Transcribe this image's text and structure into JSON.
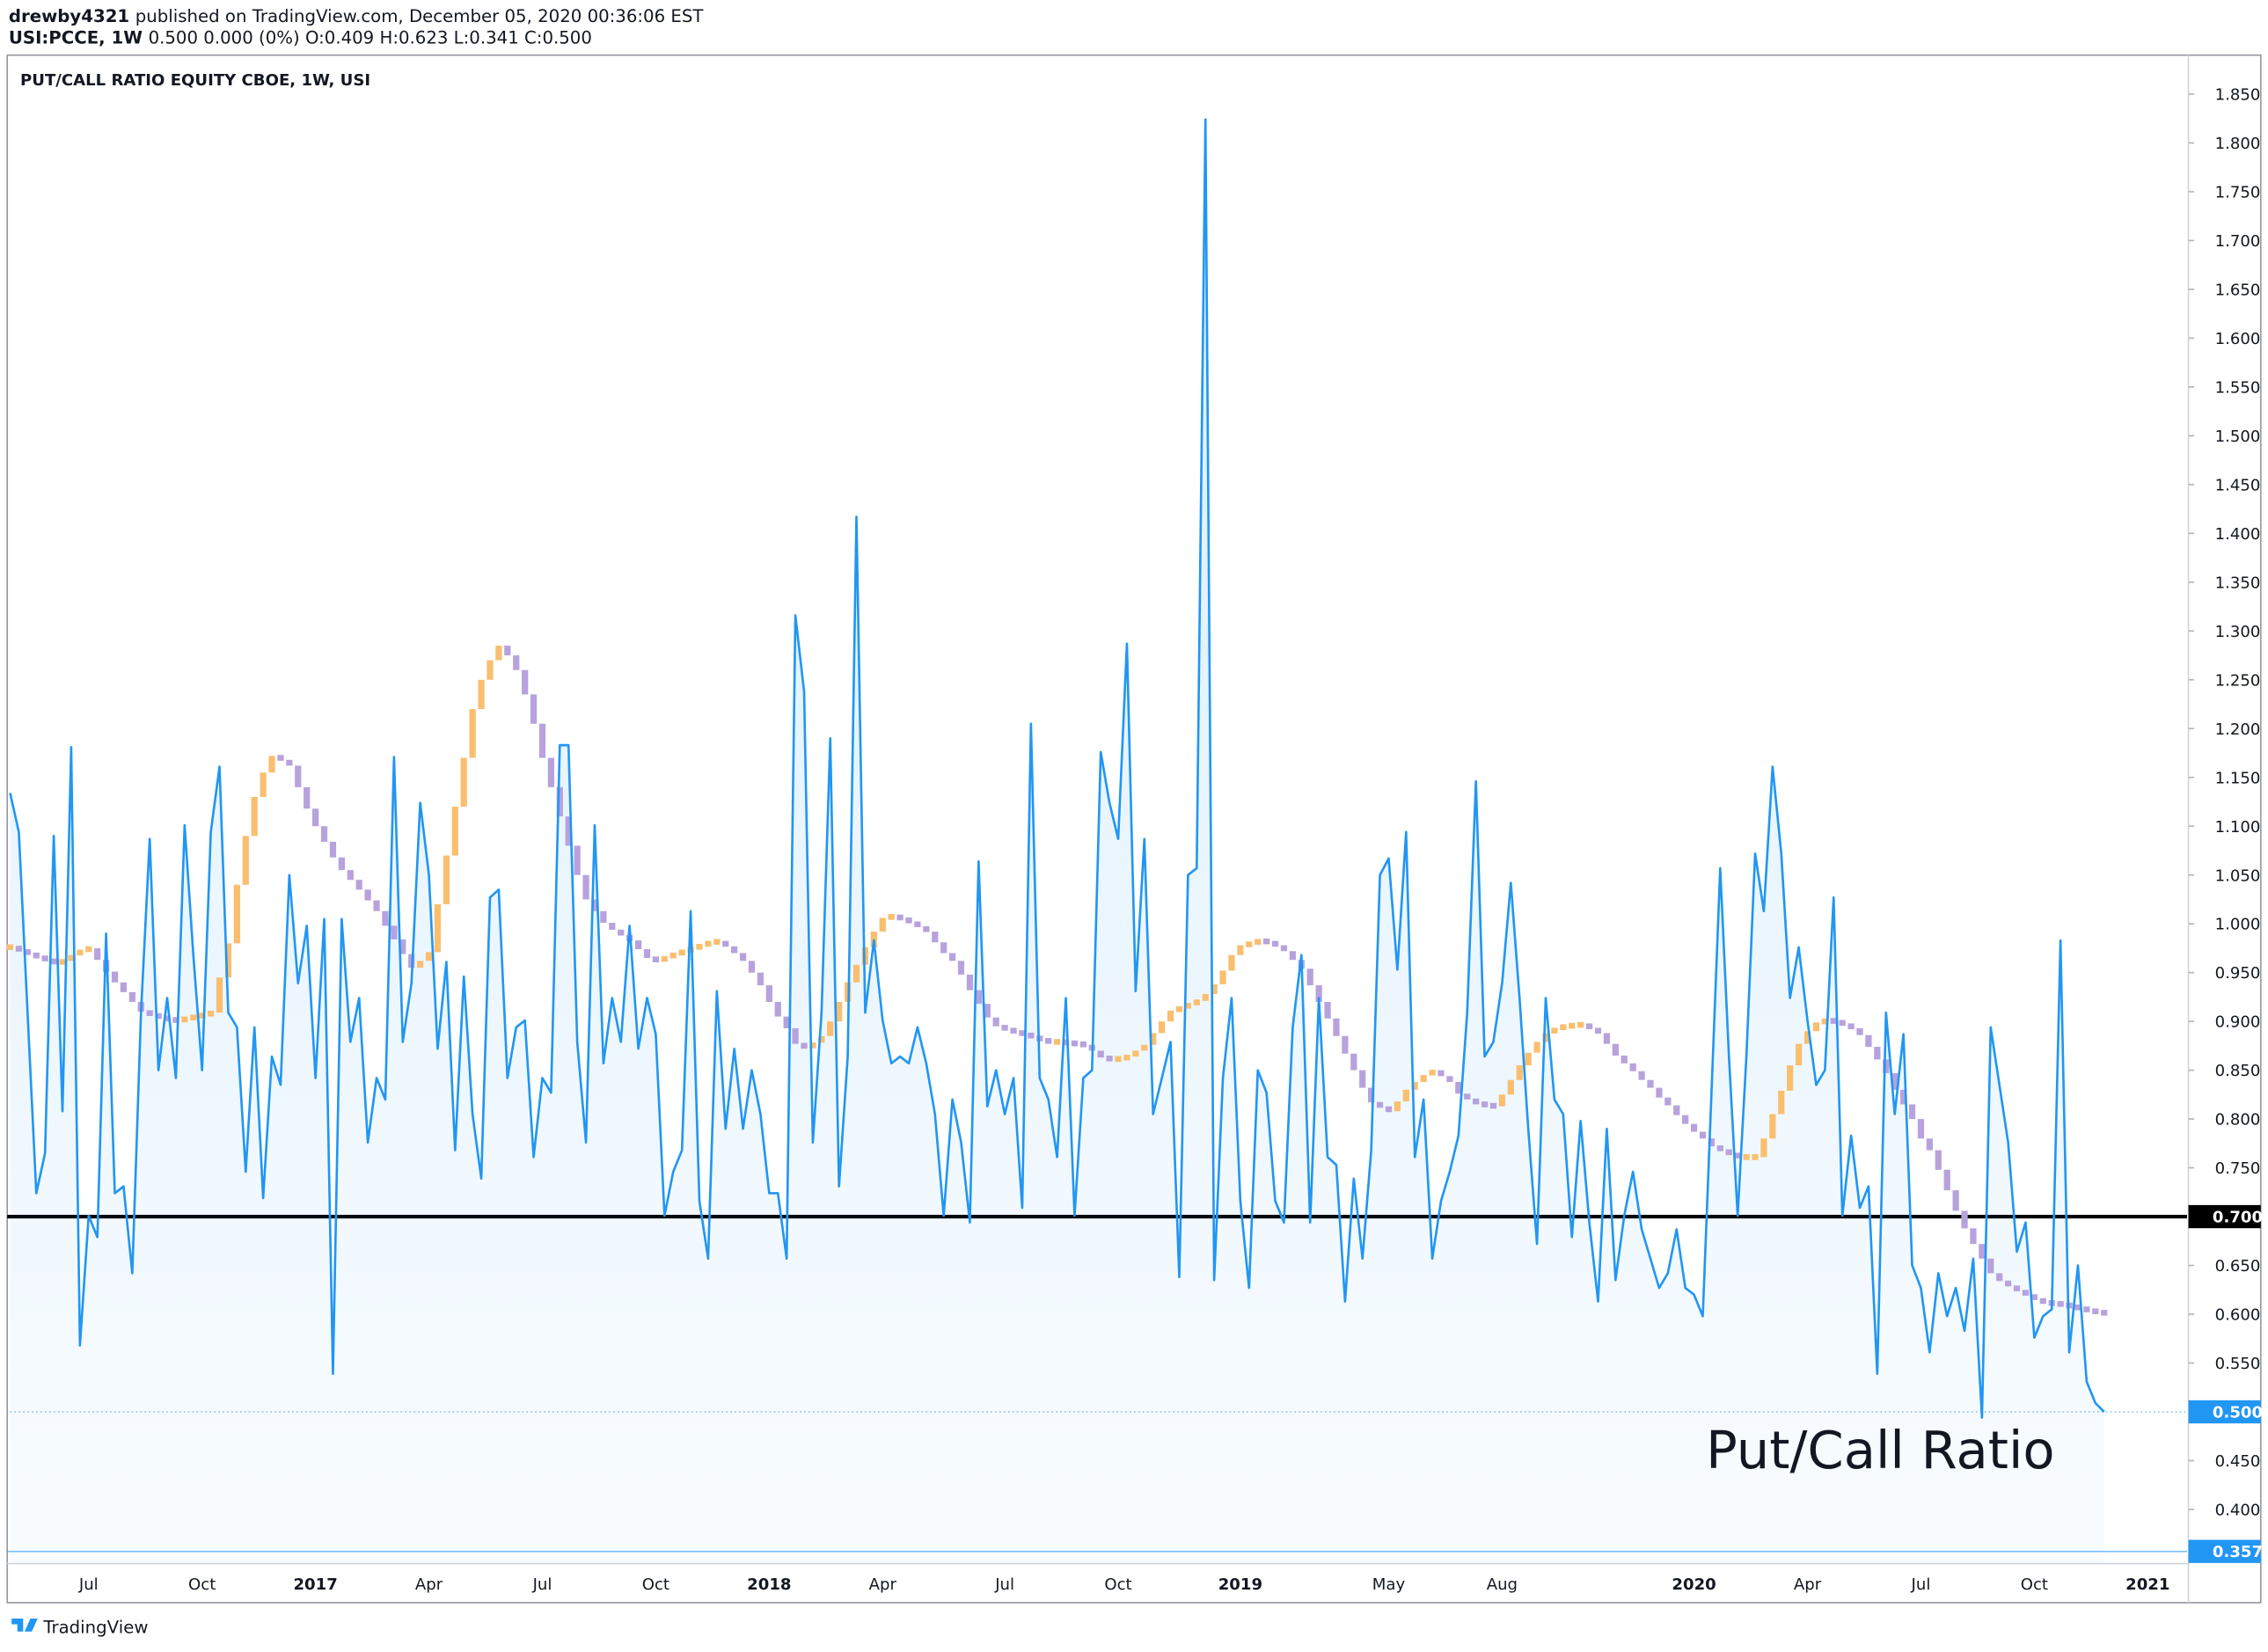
{
  "header": {
    "author": "drewby4321",
    "published": "published on TradingView.com, December 05, 2020 00:36:06 EST",
    "symbol": "USI:PCCE, 1W",
    "quote": "0.500 0.000 (0%) O:0.409 H:0.623 L:0.341 C:0.500"
  },
  "footer": {
    "brand": "TradingView"
  },
  "chart_data": {
    "type": "line",
    "title": "PUT/CALL RATIO EQUITY CBOE, 1W, USI",
    "annotation": "Put/Call Ratio",
    "categories": [
      null,
      null,
      null,
      null,
      null,
      null,
      null,
      null,
      null,
      "Jul",
      null,
      null,
      null,
      null,
      null,
      null,
      null,
      null,
      null,
      null,
      null,
      null,
      "Oct",
      null,
      null,
      null,
      null,
      null,
      null,
      null,
      null,
      null,
      null,
      null,
      null,
      "2017",
      null,
      null,
      null,
      null,
      null,
      null,
      null,
      null,
      null,
      null,
      null,
      null,
      "Apr",
      null,
      null,
      null,
      null,
      null,
      null,
      null,
      null,
      null,
      null,
      null,
      null,
      "Jul",
      null,
      null,
      null,
      null,
      null,
      null,
      null,
      null,
      null,
      null,
      null,
      null,
      "Oct",
      null,
      null,
      null,
      null,
      null,
      null,
      null,
      null,
      null,
      null,
      null,
      null,
      "2018",
      null,
      null,
      null,
      null,
      null,
      null,
      null,
      null,
      null,
      null,
      null,
      null,
      "Apr",
      null,
      null,
      null,
      null,
      null,
      null,
      null,
      null,
      null,
      null,
      null,
      null,
      null,
      "Jul",
      null,
      null,
      null,
      null,
      null,
      null,
      null,
      null,
      null,
      null,
      null,
      null,
      "Oct",
      null,
      null,
      null,
      null,
      null,
      null,
      null,
      null,
      null,
      null,
      null,
      null,
      null,
      "2019",
      null,
      null,
      null,
      null,
      null,
      null,
      null,
      null,
      null,
      null,
      null,
      null,
      null,
      null,
      null,
      null,
      "May",
      null,
      null,
      null,
      null,
      null,
      null,
      null,
      null,
      null,
      null,
      null,
      null,
      "Aug",
      null,
      null,
      null,
      null,
      null,
      null,
      null,
      null,
      null,
      null,
      null,
      null,
      null,
      null,
      null,
      null,
      null,
      null,
      null,
      null,
      null,
      "2020",
      null,
      null,
      null,
      null,
      null,
      null,
      null,
      null,
      null,
      null,
      null,
      null,
      "Apr",
      null,
      null,
      null,
      null,
      null,
      null,
      null,
      null,
      null,
      null,
      null,
      null,
      "Jul",
      null,
      null,
      null,
      null,
      null,
      null,
      null,
      null,
      null,
      null,
      null,
      null,
      "Oct",
      null,
      null,
      null,
      null,
      null,
      null,
      null,
      null,
      null,
      null,
      null,
      null,
      "2021",
      null,
      null,
      null,
      null
    ],
    "series": [
      {
        "color": "#2196f3",
        "values": [
          1.134,
          1.094,
          0.909,
          0.724,
          0.765,
          1.09,
          0.808,
          1.181,
          0.568,
          0.701,
          0.679,
          0.99,
          0.724,
          0.731,
          0.642,
          0.909,
          1.087,
          0.85,
          0.924,
          0.842,
          1.101,
          0.968,
          0.85,
          1.094,
          1.161,
          0.909,
          0.894,
          0.746,
          0.894,
          0.719,
          0.864,
          0.835,
          1.05,
          0.939,
          0.998,
          0.842,
          1.005,
          0.539,
          1.005,
          0.879,
          0.924,
          0.776,
          0.842,
          0.82,
          1.171,
          0.879,
          0.939,
          1.124,
          1.05,
          0.872,
          0.961,
          0.768,
          0.946,
          0.805,
          0.739,
          1.027,
          1.035,
          0.842,
          0.894,
          0.901,
          0.761,
          0.842,
          0.827,
          1.183,
          1.183,
          0.879,
          0.776,
          1.101,
          0.857,
          0.924,
          0.879,
          0.998,
          0.872,
          0.924,
          0.887,
          0.701,
          0.746,
          0.768,
          1.013,
          0.716,
          0.657,
          0.931,
          0.79,
          0.872,
          0.79,
          0.85,
          0.805,
          0.724,
          0.724,
          0.657,
          1.316,
          1.238,
          0.776,
          0.909,
          1.19,
          0.731,
          0.864,
          1.417,
          0.909,
          0.983,
          0.901,
          0.857,
          0.864,
          0.857,
          0.894,
          0.857,
          0.805,
          0.701,
          0.82,
          0.776,
          0.694,
          1.064,
          0.813,
          0.85,
          0.805,
          0.842,
          0.709,
          1.205,
          0.842,
          0.82,
          0.761,
          0.924,
          0.701,
          0.842,
          0.85,
          1.176,
          1.124,
          1.087,
          1.287,
          0.931,
          1.087,
          0.805,
          0.842,
          0.879,
          0.638,
          1.05,
          1.057,
          1.824,
          0.635,
          0.842,
          0.924,
          0.716,
          0.627,
          0.85,
          0.827,
          0.716,
          0.694,
          0.894,
          0.968,
          0.694,
          0.924,
          0.761,
          0.753,
          0.613,
          0.739,
          0.657,
          0.768,
          1.05,
          1.067,
          0.953,
          1.094,
          0.761,
          0.82,
          0.657,
          0.716,
          0.746,
          0.783,
          0.909,
          1.146,
          0.864,
          0.879,
          0.939,
          1.042,
          0.924,
          0.79,
          0.672,
          0.924,
          0.82,
          0.805,
          0.679,
          0.798,
          0.694,
          0.613,
          0.79,
          0.635,
          0.701,
          0.746,
          0.687,
          0.657,
          0.627,
          0.642,
          0.687,
          0.627,
          0.62,
          0.598,
          0.827,
          1.057,
          0.864,
          0.701,
          0.864,
          1.072,
          1.013,
          1.161,
          1.072,
          0.924,
          0.976,
          0.901,
          0.835,
          0.85,
          1.027,
          0.701,
          0.783,
          0.709,
          0.731,
          0.539,
          0.909,
          0.805,
          0.887,
          0.65,
          0.627,
          0.561,
          0.642,
          0.598,
          0.627,
          0.583,
          0.657,
          0.494,
          0.894,
          0.835,
          0.776,
          0.664,
          0.694,
          0.576,
          0.598,
          0.605,
          0.983,
          0.561,
          0.65,
          0.531,
          0.509,
          0.5,
          null,
          null,
          null,
          null,
          null,
          null,
          null,
          null,
          null
        ],
        "value_labels": [
          null,
          null,
          null,
          null,
          null,
          null,
          null,
          null,
          null,
          null,
          null,
          null,
          null,
          null,
          null,
          null,
          null,
          null,
          null,
          null,
          null,
          null,
          null,
          null,
          null,
          null,
          null,
          null,
          null,
          null,
          null,
          null,
          null,
          null,
          null,
          null,
          null,
          null,
          null,
          null,
          null,
          null,
          null,
          null,
          null,
          null,
          null,
          null,
          null,
          null,
          null,
          null,
          null,
          null,
          null,
          null,
          null,
          null,
          null,
          null,
          null,
          null,
          null,
          null,
          null,
          null,
          null,
          null,
          null,
          null,
          null,
          null,
          null,
          null,
          null,
          null,
          null,
          null,
          null,
          null,
          null,
          null,
          null,
          null,
          null,
          null,
          null,
          null,
          null,
          null,
          null,
          null,
          null,
          null,
          null,
          null,
          null,
          null,
          null,
          null,
          null,
          null,
          null,
          null,
          null,
          null,
          null,
          null,
          null,
          null,
          null,
          null,
          null,
          null,
          null,
          null,
          null,
          null,
          null,
          null,
          null,
          null,
          null,
          null,
          null,
          null,
          null,
          null,
          null,
          null,
          null,
          null,
          null,
          null,
          null,
          null,
          null,
          null,
          null,
          null,
          null,
          null,
          null,
          null,
          null,
          null,
          null,
          null,
          null,
          null,
          null,
          null,
          null,
          null,
          null,
          null,
          null,
          null,
          null,
          null,
          null,
          null,
          null,
          null,
          null,
          null,
          null,
          null,
          null,
          null,
          null,
          null,
          null,
          null,
          null,
          null,
          null,
          null,
          null,
          null,
          null,
          null,
          null,
          null,
          null,
          null,
          null,
          null,
          null,
          null,
          null,
          null,
          null,
          null,
          null,
          null,
          null,
          null,
          null,
          null,
          null,
          null,
          null,
          null,
          null,
          null,
          null,
          null,
          null,
          null,
          null,
          null,
          null,
          null,
          null,
          null,
          null,
          null,
          null,
          null,
          null,
          null,
          null,
          null,
          null,
          null,
          null,
          null,
          null,
          null,
          null,
          null,
          null,
          null,
          null,
          null,
          null,
          null,
          null,
          null,
          "0.500",
          null,
          null,
          null,
          null,
          null,
          null,
          null,
          null,
          null
        ]
      },
      {
        "color_up": "#f9bf6f",
        "color_down": "#b7a2dd",
        "values": [
          0.976,
          0.973,
          0.969,
          0.966,
          0.963,
          0.96,
          0.962,
          0.968,
          0.973,
          0.975,
          0.963,
          0.951,
          0.94,
          0.93,
          0.92,
          0.91,
          0.907,
          0.904,
          0.902,
          0.901,
          0.903,
          0.905,
          0.907,
          0.909,
          0.945,
          0.98,
          1.04,
          1.09,
          1.13,
          1.155,
          1.172,
          1.168,
          1.162,
          1.14,
          1.118,
          1.1,
          1.084,
          1.068,
          1.055,
          1.045,
          1.035,
          1.024,
          1.013,
          0.998,
          0.984,
          0.969,
          0.955,
          0.962,
          0.971,
          1.02,
          1.07,
          1.12,
          1.17,
          1.22,
          1.25,
          1.27,
          1.285,
          1.275,
          1.26,
          1.235,
          1.205,
          1.17,
          1.14,
          1.11,
          1.08,
          1.05,
          1.025,
          1.013,
          1.001,
          0.994,
          0.988,
          0.983,
          0.974,
          0.965,
          0.962,
          0.966,
          0.969,
          0.972,
          0.975,
          0.978,
          0.981,
          0.982,
          0.977,
          0.97,
          0.962,
          0.95,
          0.937,
          0.92,
          0.905,
          0.893,
          0.877,
          0.873,
          0.878,
          0.885,
          0.9,
          0.92,
          0.94,
          0.958,
          0.976,
          0.992,
          1.006,
          1.008,
          1.005,
          1.002,
          0.997,
          0.992,
          0.981,
          0.97,
          0.962,
          0.948,
          0.932,
          0.918,
          0.904,
          0.895,
          0.892,
          0.889,
          0.887,
          0.884,
          0.881,
          0.879,
          0.879,
          0.878,
          0.877,
          0.876,
          0.87,
          0.863,
          0.861,
          0.862,
          0.864,
          0.87,
          0.876,
          0.888,
          0.9,
          0.911,
          0.914,
          0.918,
          0.921,
          0.928,
          0.938,
          0.952,
          0.968,
          0.978,
          0.98,
          0.983,
          0.981,
          0.978,
          0.972,
          0.963,
          0.954,
          0.937,
          0.92,
          0.903,
          0.885,
          0.867,
          0.85,
          0.832,
          0.817,
          0.812,
          0.808,
          0.818,
          0.83,
          0.838,
          0.845,
          0.85,
          0.844,
          0.838,
          0.826,
          0.82,
          0.816,
          0.814,
          0.813,
          0.825,
          0.84,
          0.855,
          0.868,
          0.879,
          0.888,
          0.893,
          0.895,
          0.896,
          0.897,
          0.893,
          0.888,
          0.877,
          0.865,
          0.857,
          0.849,
          0.84,
          0.832,
          0.822,
          0.814,
          0.804,
          0.795,
          0.787,
          0.78,
          0.772,
          0.768,
          0.764,
          0.761,
          0.761,
          0.761,
          0.78,
          0.805,
          0.829,
          0.855,
          0.877,
          0.89,
          0.899,
          0.901,
          0.9,
          0.897,
          0.893,
          0.886,
          0.874,
          0.861,
          0.847,
          0.83,
          0.815,
          0.8,
          0.78,
          0.768,
          0.748,
          0.727,
          0.706,
          0.688,
          0.672,
          0.657,
          0.642,
          0.634,
          0.629,
          0.624,
          0.62,
          0.615,
          0.612,
          0.611,
          0.61,
          0.608,
          0.606,
          0.604,
          0.602,
          0.601,
          null,
          null,
          null,
          null,
          null,
          null,
          null,
          null,
          null
        ]
      }
    ],
    "hlines": [
      {
        "value": 0.7,
        "label": "0.700",
        "color": "#000000"
      },
      {
        "value": 0.357,
        "label": "0.357",
        "color": "#2196f3"
      }
    ],
    "ylim": [
      0.346,
      1.887
    ],
    "yticks": [
      {
        "value": 0.4,
        "label": "0.400"
      },
      {
        "value": 0.45,
        "label": "0.450"
      },
      {
        "value": 0.5,
        "label": "0.500"
      },
      {
        "value": 0.55,
        "label": "0.550"
      },
      {
        "value": 0.6,
        "label": "0.600"
      },
      {
        "value": 0.65,
        "label": "0.650"
      },
      {
        "value": 0.7,
        "label": "0.700"
      },
      {
        "value": 0.75,
        "label": "0.750"
      },
      {
        "value": 0.8,
        "label": "0.800"
      },
      {
        "value": 0.85,
        "label": "0.850"
      },
      {
        "value": 0.9,
        "label": "0.900"
      },
      {
        "value": 0.95,
        "label": "0.950"
      },
      {
        "value": 1.0,
        "label": "1.000"
      },
      {
        "value": 1.05,
        "label": "1.050"
      },
      {
        "value": 1.1,
        "label": "1.100"
      },
      {
        "value": 1.15,
        "label": "1.150"
      },
      {
        "value": 1.2,
        "label": "1.200"
      },
      {
        "value": 1.25,
        "label": "1.250"
      },
      {
        "value": 1.3,
        "label": "1.300"
      },
      {
        "value": 1.35,
        "label": "1.350"
      },
      {
        "value": 1.4,
        "label": "1.400"
      },
      {
        "value": 1.45,
        "label": "1.450"
      },
      {
        "value": 1.5,
        "label": "1.500"
      },
      {
        "value": 1.55,
        "label": "1.550"
      },
      {
        "value": 1.6,
        "label": "1.600"
      },
      {
        "value": 1.65,
        "label": "1.650"
      },
      {
        "value": 1.7,
        "label": "1.700"
      },
      {
        "value": 1.75,
        "label": "1.750"
      },
      {
        "value": 1.8,
        "label": "1.800"
      },
      {
        "value": 1.85,
        "label": "1.850"
      }
    ],
    "grid": false
  }
}
